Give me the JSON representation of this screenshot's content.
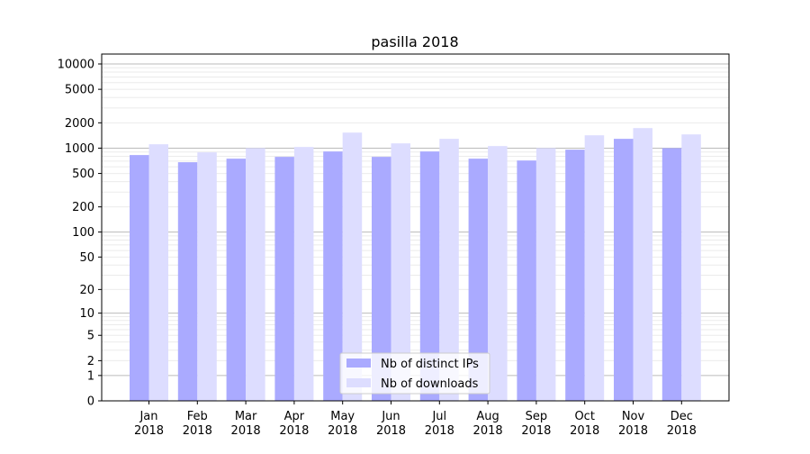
{
  "chart_data": {
    "type": "bar",
    "title": "pasilla 2018",
    "xlabel": "",
    "ylabel": "",
    "yscale": "log(1+y)",
    "ylim": [
      0,
      12000
    ],
    "yticks": [
      0,
      1,
      2,
      5,
      10,
      20,
      50,
      100,
      200,
      500,
      1000,
      2000,
      5000,
      10000
    ],
    "grid": true,
    "legend_position": "bottom-center",
    "categories": [
      [
        "Jan",
        "2018"
      ],
      [
        "Feb",
        "2018"
      ],
      [
        "Mar",
        "2018"
      ],
      [
        "Apr",
        "2018"
      ],
      [
        "May",
        "2018"
      ],
      [
        "Jun",
        "2018"
      ],
      [
        "Jul",
        "2018"
      ],
      [
        "Aug",
        "2018"
      ],
      [
        "Sep",
        "2018"
      ],
      [
        "Oct",
        "2018"
      ],
      [
        "Nov",
        "2018"
      ],
      [
        "Dec",
        "2018"
      ]
    ],
    "series": [
      {
        "name": "Nb of distinct IPs",
        "color": "#aaaaff",
        "values": [
          828,
          680,
          750,
          788,
          913,
          788,
          913,
          750,
          713,
          960,
          1290,
          1000
        ]
      },
      {
        "name": "Nb of downloads",
        "color": "#ddddff",
        "values": [
          1112,
          891,
          1000,
          1033,
          1530,
          1140,
          1290,
          1058,
          1000,
          1422,
          1730,
          1457
        ]
      }
    ]
  }
}
